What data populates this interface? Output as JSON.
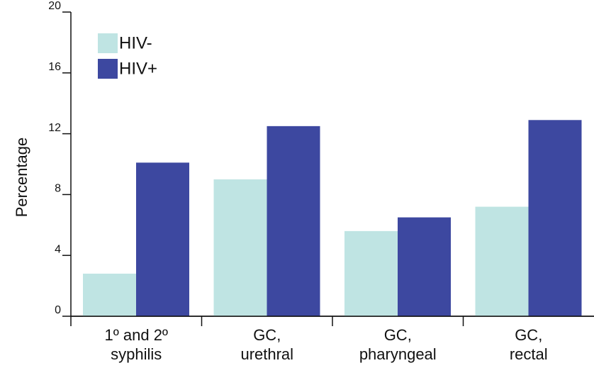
{
  "chart_data": {
    "type": "bar",
    "y_label": "Percentage",
    "categories": [
      [
        "1º and 2º",
        "syphilis"
      ],
      [
        "GC,",
        "urethral"
      ],
      [
        "GC,",
        "pharyngeal"
      ],
      [
        "GC,",
        "rectal"
      ]
    ],
    "series": [
      {
        "name": "HIV-",
        "color": "#bfe4e3",
        "values": [
          2.8,
          9.0,
          5.6,
          7.2
        ]
      },
      {
        "name": "HIV+",
        "color": "#3d48a0",
        "values": [
          10.1,
          12.5,
          6.5,
          12.9
        ]
      }
    ],
    "ylim": [
      0,
      20
    ],
    "yticks": [
      0,
      4,
      8,
      12,
      16,
      20
    ],
    "legend": "upper left"
  }
}
